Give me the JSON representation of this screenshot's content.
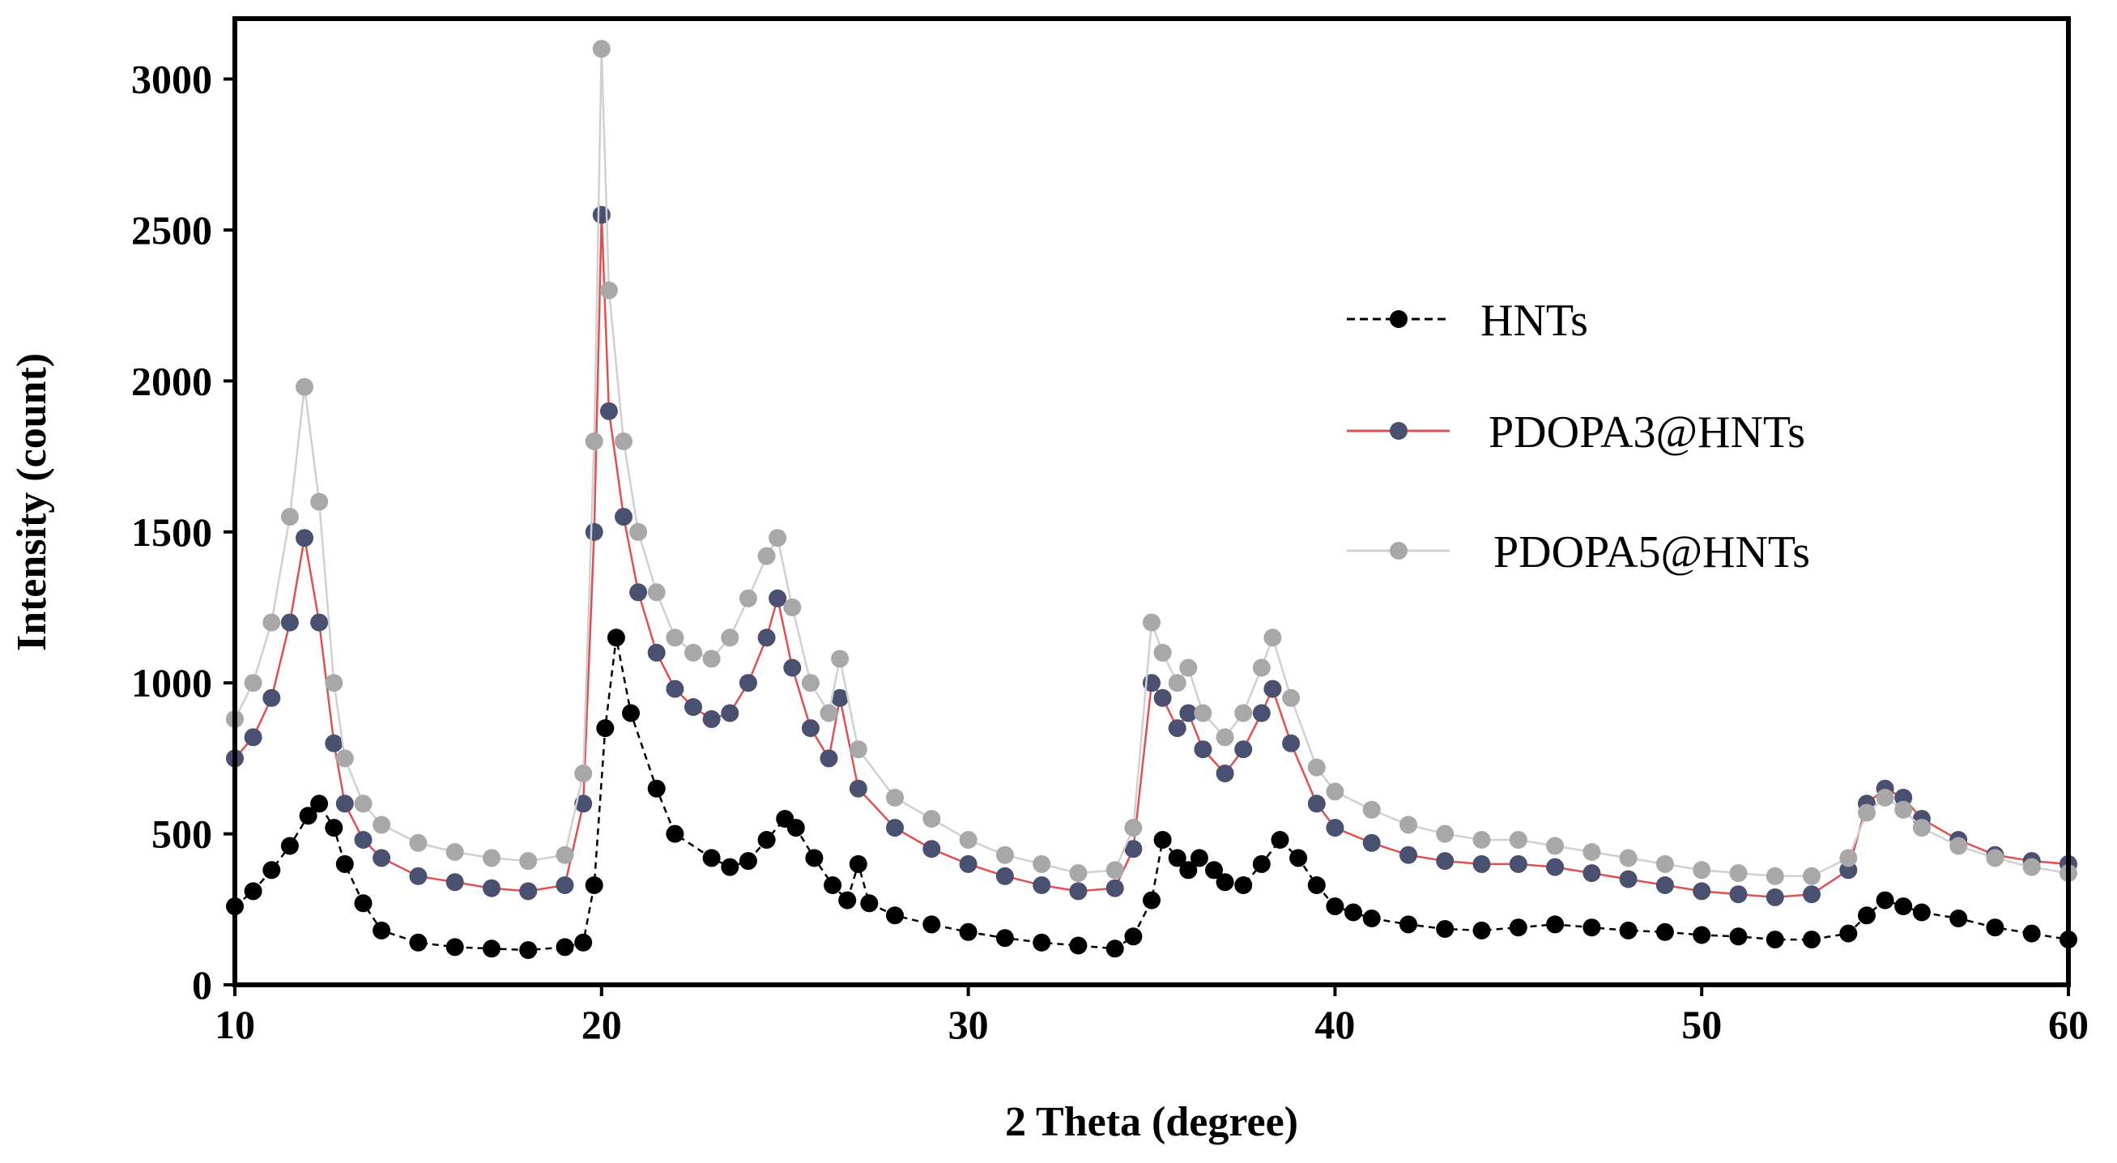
{
  "chart_data": {
    "type": "scatter",
    "title": "",
    "xlabel": "2 Theta (degree)",
    "ylabel": "Intensity (count)",
    "xlim": [
      10,
      60
    ],
    "ylim": [
      0,
      3200
    ],
    "xticks": [
      10,
      20,
      30,
      40,
      50,
      60
    ],
    "yticks": [
      0,
      500,
      1000,
      1500,
      2000,
      2500,
      3000
    ],
    "grid": false,
    "legend_position": "right",
    "series": [
      {
        "name": "HNTs",
        "color": "#000000",
        "line_color": "#000000",
        "line_style": "dashed",
        "x": [
          10,
          10.5,
          11,
          11.5,
          12,
          12.3,
          12.7,
          13,
          13.5,
          14,
          15,
          16,
          17,
          18,
          19,
          19.5,
          19.8,
          20.1,
          20.4,
          20.8,
          21.5,
          22,
          23,
          23.5,
          24,
          24.5,
          25,
          25.3,
          25.8,
          26.3,
          26.7,
          27,
          27.3,
          28,
          29,
          30,
          31,
          32,
          33,
          34,
          34.5,
          35,
          35.3,
          35.7,
          36,
          36.3,
          36.7,
          37,
          37.5,
          38,
          38.5,
          39,
          39.5,
          40,
          40.5,
          41,
          42,
          43,
          44,
          45,
          46,
          47,
          48,
          49,
          50,
          51,
          52,
          53,
          54,
          54.5,
          55,
          55.5,
          56,
          57,
          58,
          59,
          60
        ],
        "values": [
          260,
          310,
          380,
          460,
          560,
          600,
          520,
          400,
          270,
          180,
          140,
          125,
          120,
          115,
          125,
          140,
          330,
          850,
          1150,
          900,
          650,
          500,
          420,
          390,
          410,
          480,
          550,
          520,
          420,
          330,
          280,
          400,
          270,
          230,
          200,
          175,
          155,
          140,
          130,
          120,
          160,
          280,
          480,
          420,
          380,
          420,
          380,
          340,
          330,
          400,
          480,
          420,
          330,
          260,
          240,
          220,
          200,
          185,
          180,
          190,
          200,
          190,
          180,
          175,
          165,
          160,
          150,
          150,
          170,
          230,
          280,
          260,
          240,
          220,
          190,
          170,
          150
        ]
      },
      {
        "name": "PDOPA3@HNTs",
        "color": "#4a5070",
        "line_color": "#e05050",
        "line_style": "solid",
        "x": [
          10,
          10.5,
          11,
          11.5,
          11.9,
          12.3,
          12.7,
          13,
          13.5,
          14,
          15,
          16,
          17,
          18,
          19,
          19.5,
          19.8,
          20,
          20.2,
          20.6,
          21,
          21.5,
          22,
          22.5,
          23,
          23.5,
          24,
          24.5,
          24.8,
          25.2,
          25.7,
          26.2,
          26.5,
          27,
          28,
          29,
          30,
          31,
          32,
          33,
          34,
          34.5,
          35,
          35.3,
          35.7,
          36,
          36.4,
          37,
          37.5,
          38,
          38.3,
          38.8,
          39.5,
          40,
          41,
          42,
          43,
          44,
          45,
          46,
          47,
          48,
          49,
          50,
          51,
          52,
          53,
          54,
          54.5,
          55,
          55.5,
          56,
          57,
          58,
          59,
          60
        ],
        "values": [
          750,
          820,
          950,
          1200,
          1480,
          1200,
          800,
          600,
          480,
          420,
          360,
          340,
          320,
          310,
          330,
          600,
          1500,
          2550,
          1900,
          1550,
          1300,
          1100,
          980,
          920,
          880,
          900,
          1000,
          1150,
          1280,
          1050,
          850,
          750,
          950,
          650,
          520,
          450,
          400,
          360,
          330,
          310,
          320,
          450,
          1000,
          950,
          850,
          900,
          780,
          700,
          780,
          900,
          980,
          800,
          600,
          520,
          470,
          430,
          410,
          400,
          400,
          390,
          370,
          350,
          330,
          310,
          300,
          290,
          300,
          380,
          600,
          650,
          620,
          550,
          480,
          430,
          410,
          400
        ]
      },
      {
        "name": "PDOPA5@HNTs",
        "color": "#a8a8a8",
        "line_color": "#d0d0d0",
        "line_style": "solid",
        "x": [
          10,
          10.5,
          11,
          11.5,
          11.9,
          12.3,
          12.7,
          13,
          13.5,
          14,
          15,
          16,
          17,
          18,
          19,
          19.5,
          19.8,
          20,
          20.2,
          20.6,
          21,
          21.5,
          22,
          22.5,
          23,
          23.5,
          24,
          24.5,
          24.8,
          25.2,
          25.7,
          26.2,
          26.5,
          27,
          28,
          29,
          30,
          31,
          32,
          33,
          34,
          34.5,
          35,
          35.3,
          35.7,
          36,
          36.4,
          37,
          37.5,
          38,
          38.3,
          38.8,
          39.5,
          40,
          41,
          42,
          43,
          44,
          45,
          46,
          47,
          48,
          49,
          50,
          51,
          52,
          53,
          54,
          54.5,
          55,
          55.5,
          56,
          57,
          58,
          59,
          60
        ],
        "values": [
          880,
          1000,
          1200,
          1550,
          1980,
          1600,
          1000,
          750,
          600,
          530,
          470,
          440,
          420,
          410,
          430,
          700,
          1800,
          3100,
          2300,
          1800,
          1500,
          1300,
          1150,
          1100,
          1080,
          1150,
          1280,
          1420,
          1480,
          1250,
          1000,
          900,
          1080,
          780,
          620,
          550,
          480,
          430,
          400,
          370,
          380,
          520,
          1200,
          1100,
          1000,
          1050,
          900,
          820,
          900,
          1050,
          1150,
          950,
          720,
          640,
          580,
          530,
          500,
          480,
          480,
          460,
          440,
          420,
          400,
          380,
          370,
          360,
          360,
          420,
          570,
          620,
          580,
          520,
          460,
          420,
          390,
          370
        ]
      }
    ]
  }
}
